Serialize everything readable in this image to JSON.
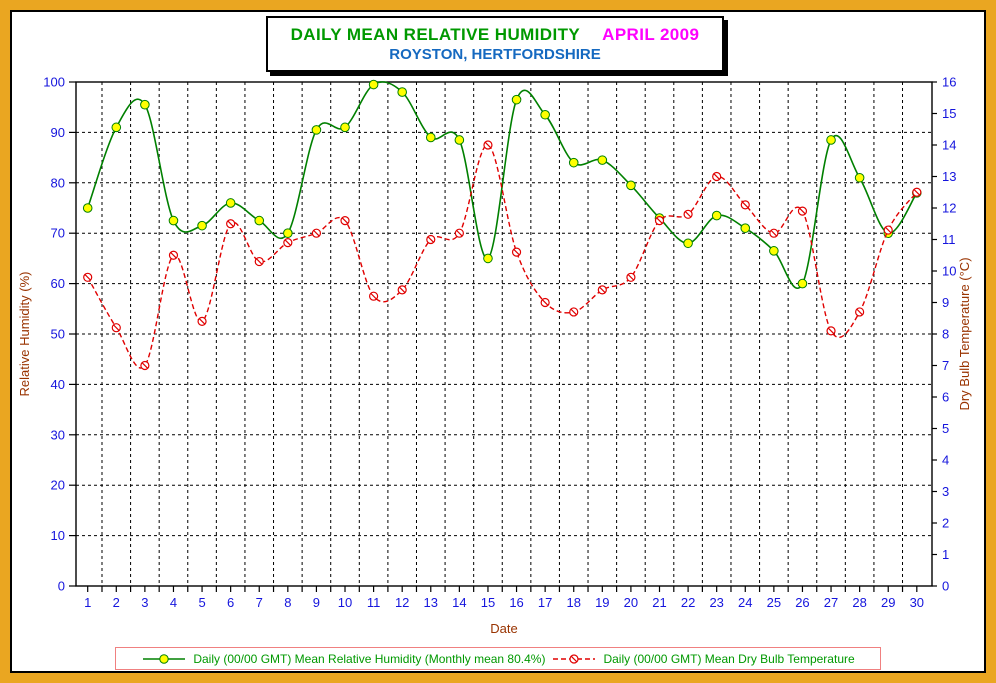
{
  "title": {
    "main": "DAILY MEAN RELATIVE HUMIDITY",
    "period": "APRIL 2009",
    "subtitle": "ROYSTON, HERTFORDSHIRE"
  },
  "legend": {
    "humidity_label": "Daily (00/00 GMT) Mean Relative Humidity (Monthly mean 80.4%)",
    "temperature_label": "Daily (00/00 GMT) Mean Dry Bulb Temperature"
  },
  "colors": {
    "page_frame": "#EAA621",
    "title_main": "#009900",
    "title_period": "#FF00FF",
    "title_subtitle": "#1569C0",
    "tick_labels": "#1515DD",
    "axis_titles": "#993300",
    "humidity_series": "#008000",
    "humidity_marker_fill": "#FFFF00",
    "temperature_series": "#E00000",
    "grid": "#000000",
    "legend_border": "#F08080",
    "legend_text": "#009900"
  },
  "chart_data": {
    "type": "line",
    "title": "DAILY MEAN RELATIVE HUMIDITY APRIL 2009 — ROYSTON, HERTFORDSHIRE",
    "xlabel": "Date",
    "x": [
      1,
      2,
      3,
      4,
      5,
      6,
      7,
      8,
      9,
      10,
      11,
      12,
      13,
      14,
      15,
      16,
      17,
      18,
      19,
      20,
      21,
      22,
      23,
      24,
      25,
      26,
      27,
      28,
      29,
      30
    ],
    "left_axis": {
      "label": "Relative Humidity (%)",
      "min": 0,
      "max": 100,
      "tick_step": 10
    },
    "right_axis": {
      "label": "Dry Bulb Temperature (°C)",
      "min": 0,
      "max": 16,
      "tick_step": 1
    },
    "grid": {
      "style": "dashed",
      "horizontal_every_pct": 10,
      "vertical_between_days": true
    },
    "legend_position": "bottom",
    "series": [
      {
        "name": "Daily (00/00 GMT) Mean Relative Humidity (Monthly mean 80.4%)",
        "axis": "left",
        "line_style": "solid",
        "marker": "yellow-filled-circle",
        "monthly_mean_pct": 80.4,
        "values": [
          75,
          91,
          95.5,
          72.5,
          71.5,
          76,
          72.5,
          70,
          90.5,
          91,
          99.5,
          98,
          89,
          88.5,
          65,
          96.5,
          93.5,
          84,
          84.5,
          79.5,
          73,
          68,
          73.5,
          71,
          66.5,
          60,
          88.5,
          81,
          70,
          78
        ]
      },
      {
        "name": "Daily (00/00 GMT) Mean Dry Bulb Temperature",
        "axis": "right",
        "line_style": "dashed",
        "marker": "open-circle-slash",
        "values": [
          9.8,
          8.2,
          7,
          10.5,
          8.4,
          11.5,
          10.3,
          10.9,
          11.2,
          11.6,
          9.2,
          9.4,
          11,
          11.2,
          14,
          10.6,
          9,
          8.7,
          9.4,
          9.8,
          11.6,
          11.8,
          13,
          12.1,
          11.2,
          11.9,
          8.1,
          8.7,
          11.3,
          12.5
        ]
      }
    ]
  }
}
